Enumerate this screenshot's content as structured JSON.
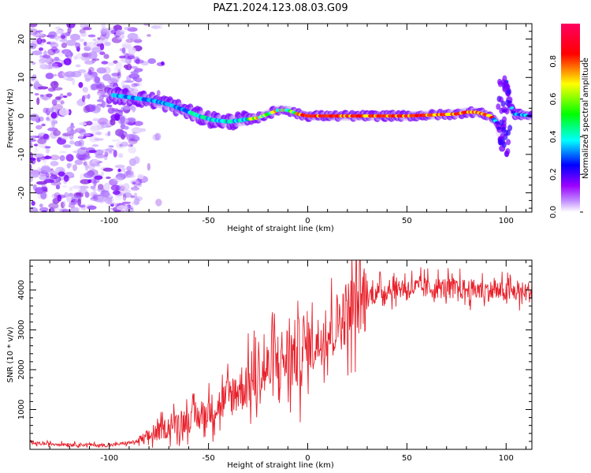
{
  "title": "PAZ1.2024.123.08.03.G09",
  "chart_data": [
    {
      "type": "heatmap",
      "xlabel": "Height of straight line (km)",
      "ylabel": "Frequency (Hz)",
      "xlim": [
        -140,
        113
      ],
      "ylim": [
        -25,
        24
      ],
      "xticks": [
        -100,
        -50,
        0,
        50,
        100
      ],
      "yticks": [
        -20,
        -10,
        0,
        10,
        20
      ],
      "colorbar": {
        "label": "Normalized spectral amplitude",
        "range": [
          0.0,
          1.0
        ],
        "ticks": [
          0.0,
          0.2,
          0.4,
          0.6,
          0.8
        ],
        "colormap": [
          "#ffffff",
          "#9b00ff",
          "#0000ff",
          "#00ffff",
          "#00ff00",
          "#ffff00",
          "#ff0000",
          "#ff0060"
        ]
      },
      "ridge": {
        "x": [
          -100,
          -92,
          -85,
          -78,
          -70,
          -62,
          -55,
          -48,
          -40,
          -32,
          -25,
          -20,
          -15,
          -10,
          -5,
          0,
          20,
          50,
          75,
          80,
          85,
          92,
          96,
          98,
          100,
          102,
          104,
          113
        ],
        "y": [
          5.5,
          5,
          4.5,
          4,
          3,
          1.5,
          0,
          -1,
          -1.5,
          -1,
          -0.5,
          0.5,
          1.5,
          1.5,
          0.5,
          0,
          0,
          0,
          0.5,
          1,
          1,
          0,
          -2,
          -8,
          9,
          3,
          0.5,
          0
        ]
      }
    },
    {
      "type": "line",
      "xlabel": "Height of straight line (km)",
      "ylabel": "SNR (10 * v/v)",
      "xlim": [
        -140,
        113
      ],
      "ylim": [
        0,
        4750
      ],
      "xticks": [
        -100,
        -50,
        0,
        50,
        100
      ],
      "yticks": [
        1000,
        2000,
        3000,
        4000
      ],
      "color": "#e8202a",
      "trend": {
        "x": [
          -140,
          -100,
          -85,
          -75,
          -65,
          -55,
          -45,
          -35,
          -25,
          -15,
          -5,
          5,
          15,
          25,
          35,
          45,
          55,
          70,
          85,
          100,
          113
        ],
        "y": [
          150,
          100,
          200,
          450,
          700,
          800,
          1100,
          1500,
          1800,
          2200,
          2400,
          2700,
          3200,
          3700,
          3950,
          4050,
          4050,
          4050,
          4000,
          3950,
          3950
        ]
      }
    }
  ]
}
